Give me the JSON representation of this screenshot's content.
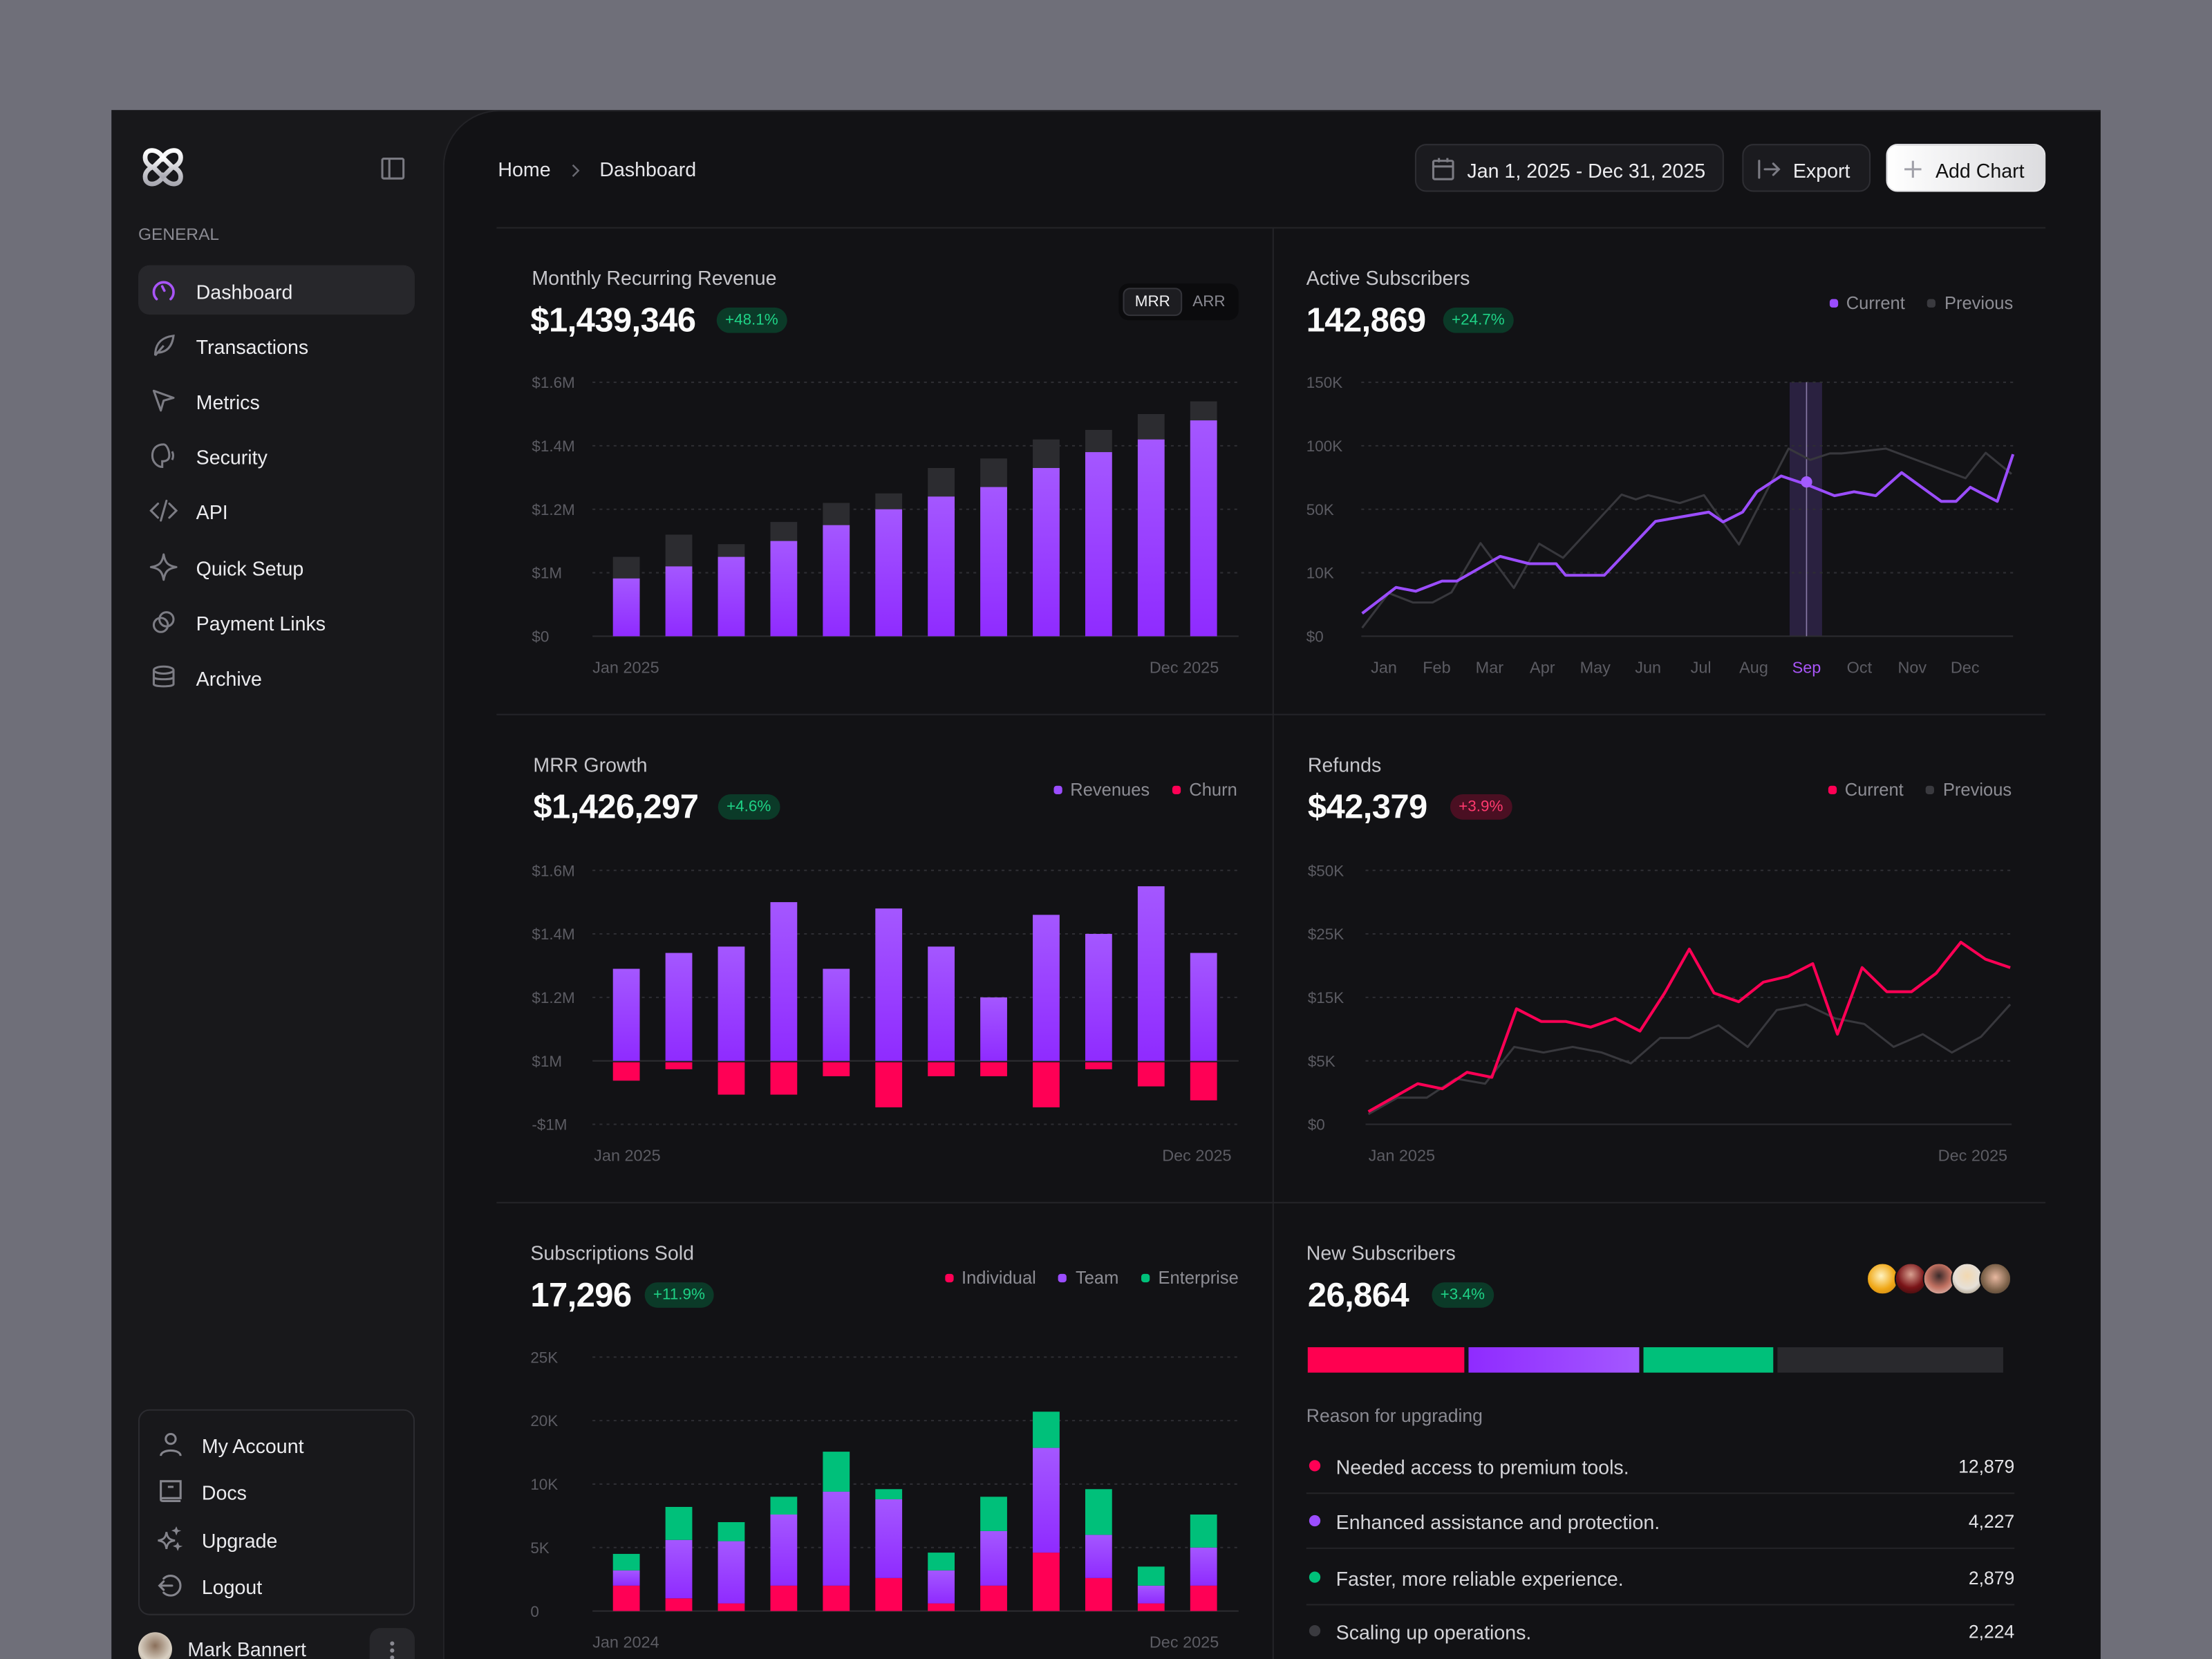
{
  "colors": {
    "accent": "#9b4dff",
    "red": "#ff0055",
    "green": "#00c07a",
    "grey": "#2a2a2e",
    "page_bg": "#121215",
    "sidebar_bg": "#18181b"
  },
  "sidebar": {
    "logo": "logo-icon",
    "section_label": "GENERAL",
    "items": [
      {
        "label": "Dashboard",
        "icon": "gauge-icon",
        "active": true
      },
      {
        "label": "Transactions",
        "icon": "leaf-icon"
      },
      {
        "label": "Metrics",
        "icon": "cursor-icon"
      },
      {
        "label": "Security",
        "icon": "shield-icon"
      },
      {
        "label": "API",
        "icon": "code-icon"
      },
      {
        "label": "Quick Setup",
        "icon": "sparkle-icon"
      },
      {
        "label": "Payment Links",
        "icon": "link-icon"
      },
      {
        "label": "Archive",
        "icon": "database-icon"
      }
    ],
    "bottom_items": [
      {
        "label": "My Account",
        "icon": "user-icon"
      },
      {
        "label": "Docs",
        "icon": "book-icon"
      },
      {
        "label": "Upgrade",
        "icon": "sparkles-icon"
      },
      {
        "label": "Logout",
        "icon": "logout-icon"
      }
    ],
    "user": {
      "name": "Mark Bannert"
    }
  },
  "header": {
    "breadcrumb": [
      "Home",
      "Dashboard"
    ],
    "date_range": "Jan 1, 2025 - Dec 31, 2025",
    "export_label": "Export",
    "add_chart_label": "Add Chart"
  },
  "chart_data": [
    {
      "type": "bar",
      "title": "Monthly Recurring Revenue",
      "value": "$1,439,346",
      "change": "+48.1%",
      "change_dir": "up",
      "toggle": {
        "options": [
          "MRR",
          "ARR"
        ],
        "selected": "MRR"
      },
      "yticks": [
        "$0",
        "$1M",
        "$1.2M",
        "$1.4M",
        "$1.6M"
      ],
      "ytick_values": [
        0,
        1,
        1.2,
        1.4,
        1.6
      ],
      "unit": "$M",
      "xlabels": [
        "Jan 2025",
        "Dec 2025"
      ],
      "series": [
        {
          "values": [
            0.91,
            1.02,
            1.05,
            1.1,
            1.15,
            1.2,
            1.24,
            1.27,
            1.33,
            1.38,
            1.42,
            1.48
          ],
          "color": "#9b4dff"
        },
        {
          "values": [
            1.05,
            1.12,
            1.09,
            1.16,
            1.22,
            1.25,
            1.33,
            1.36,
            1.42,
            1.45,
            1.5,
            1.54
          ],
          "color": "#2c2c30"
        }
      ]
    },
    {
      "type": "line",
      "title": "Active Subscribers",
      "value": "142,869",
      "change": "+24.7%",
      "change_dir": "up",
      "legend": [
        "Current",
        "Previous"
      ],
      "yticks": [
        "$0",
        "10K",
        "50K",
        "100K",
        "150K"
      ],
      "ytick_values": [
        0,
        10,
        50,
        100,
        150
      ],
      "unit": "K",
      "months": [
        "Jan",
        "Feb",
        "Mar",
        "Apr",
        "May",
        "Jun",
        "Jul",
        "Aug",
        "Sep",
        "Oct",
        "Nov",
        "Dec"
      ],
      "highlight_month": "Sep",
      "series": [
        {
          "name": "Current",
          "color": "#9b4dff",
          "points": [
            [
              0.59,
              3.6
            ],
            [
              1.23,
              7.7
            ],
            [
              1.6,
              7.1
            ],
            [
              2.1,
              8.7
            ],
            [
              2.38,
              8.7
            ],
            [
              3.2,
              20.3
            ],
            [
              3.75,
              15.7
            ],
            [
              4.26,
              15.7
            ],
            [
              4.44,
              9.6
            ],
            [
              5.17,
              9.6
            ],
            [
              6.14,
              42.4
            ],
            [
              7.15,
              48.2
            ],
            [
              7.42,
              42
            ],
            [
              7.79,
              48.2
            ],
            [
              8.06,
              63.8
            ],
            [
              8.52,
              76.2
            ],
            [
              9.01,
              69.3
            ],
            [
              9.53,
              60.7
            ],
            [
              9.9,
              63.8
            ],
            [
              10.31,
              60.7
            ],
            [
              10.8,
              78.9
            ],
            [
              11.55,
              56.2
            ],
            [
              11.83,
              56.2
            ],
            [
              12.1,
              67.3
            ],
            [
              12.61,
              56.2
            ],
            [
              12.91,
              93.3
            ]
          ]
        },
        {
          "name": "Previous",
          "color": "#38383d",
          "points": [
            [
              0.59,
              1.3
            ],
            [
              1.09,
              6.8
            ],
            [
              1.55,
              5.3
            ],
            [
              1.92,
              5.3
            ],
            [
              2.28,
              6.9
            ],
            [
              2.83,
              28.7
            ],
            [
              3.46,
              7.6
            ],
            [
              3.94,
              28.3
            ],
            [
              4.39,
              19.4
            ],
            [
              5.5,
              61.6
            ],
            [
              5.77,
              57.8
            ],
            [
              6.0,
              61.1
            ],
            [
              6.6,
              54.9
            ],
            [
              7.06,
              61.1
            ],
            [
              7.72,
              27.8
            ],
            [
              8.66,
              97.8
            ],
            [
              9.07,
              88.9
            ],
            [
              9.44,
              94
            ],
            [
              9.67,
              94
            ],
            [
              10.5,
              97.8
            ],
            [
              12.01,
              74.4
            ],
            [
              12.39,
              94.4
            ],
            [
              12.88,
              77.8
            ]
          ]
        }
      ]
    },
    {
      "type": "bar",
      "title": "MRR Growth",
      "value": "$1,426,297",
      "change": "+4.6%",
      "change_dir": "up",
      "legend": [
        "Revenues",
        "Churn"
      ],
      "yticks": [
        "-$1M",
        "$1M",
        "$1.2M",
        "$1.4M",
        "$1.6M"
      ],
      "ytick_values": [
        -1,
        1,
        1.2,
        1.4,
        1.6
      ],
      "unit": "$M",
      "xlabels": [
        "Jan 2025",
        "Dec 2025"
      ],
      "series": [
        {
          "name": "Revenues",
          "color": "#9b4dff",
          "values": [
            1.29,
            1.34,
            1.36,
            1.5,
            1.29,
            1.48,
            1.36,
            1.2,
            1.46,
            1.4,
            1.55,
            1.34
          ]
        },
        {
          "name": "Churn",
          "color": "#ff0055",
          "values": [
            -0.29,
            -0.11,
            -0.51,
            -0.51,
            -0.22,
            -0.71,
            -0.22,
            -0.22,
            -0.71,
            -0.11,
            -0.38,
            -0.6
          ]
        }
      ]
    },
    {
      "type": "line",
      "title": "Refunds",
      "value": "$42,379",
      "change": "+3.9%",
      "change_dir": "down",
      "legend": [
        "Current",
        "Previous"
      ],
      "yticks": [
        "$0",
        "$5K",
        "$15K",
        "$25K",
        "$50K"
      ],
      "ytick_values": [
        0,
        5,
        15,
        25,
        50
      ],
      "unit": "$K",
      "xlabels": [
        "Jan 2025",
        "Dec 2025"
      ],
      "series": [
        {
          "name": "Current",
          "color": "#ff0055",
          "values": [
            1.0,
            2.1,
            3.2,
            2.8,
            4.1,
            3.7,
            13.2,
            11.2,
            11.2,
            10.3,
            11.7,
            9.7,
            15.7,
            22.6,
            15.7,
            14.3,
            17.4,
            18.3,
            20.3,
            9.2,
            19.7,
            15.9,
            15.9,
            18.8,
            23.7,
            21.0,
            19.7
          ]
        },
        {
          "name": "Previous",
          "color": "#38383d",
          "values": [
            0.8,
            2.1,
            2.1,
            3.6,
            3.2,
            7.2,
            6.3,
            7.2,
            6.3,
            4.8,
            8.6,
            8.6,
            10.6,
            7.2,
            13.0,
            13.9,
            11.7,
            10.8,
            7.2,
            9.2,
            6.3,
            8.8,
            13.9
          ]
        }
      ]
    },
    {
      "type": "bar",
      "stacked": true,
      "title": "Subscriptions Sold",
      "value": "17,296",
      "change": "+11.9%",
      "change_dir": "up",
      "legend": [
        "Individual",
        "Team",
        "Enterprise"
      ],
      "yticks": [
        "0",
        "5K",
        "10K",
        "20K",
        "25K"
      ],
      "ytick_values": [
        0,
        5,
        10,
        20,
        25
      ],
      "unit": "K",
      "xlabels": [
        "Jan 2024",
        "Dec 2025"
      ],
      "series": [
        {
          "name": "Individual",
          "color": "#ff0055",
          "values": [
            2.0,
            1.0,
            0.6,
            2.0,
            2.0,
            2.6,
            0.6,
            2.0,
            4.6,
            2.6,
            0.6,
            2.0
          ]
        },
        {
          "name": "Team",
          "color": "#9b4dff",
          "values": [
            1.2,
            4.6,
            4.9,
            5.6,
            7.4,
            6.2,
            2.6,
            4.3,
            11.1,
            3.4,
            1.4,
            3.0
          ]
        },
        {
          "name": "Enterprise",
          "color": "#00c07a",
          "values": [
            1.3,
            2.6,
            1.5,
            1.4,
            5.7,
            0.8,
            1.4,
            2.7,
            5.0,
            3.6,
            1.5,
            2.6
          ]
        }
      ]
    }
  ],
  "new_subscribers": {
    "title": "New Subscribers",
    "value": "26,864",
    "change": "+3.4%",
    "change_dir": "up",
    "avatars": 5,
    "segment_shares_percent": [
      22.6,
      24.6,
      18.6,
      32.4
    ],
    "reason_label": "Reason for upgrading",
    "reasons": [
      {
        "label": "Needed access to premium tools.",
        "value": "12,879",
        "color": "#ff0055"
      },
      {
        "label": "Enhanced assistance and protection.",
        "value": "4,227",
        "color": "#9b4dff"
      },
      {
        "label": "Faster, more reliable experience.",
        "value": "2,879",
        "color": "#00c07a"
      },
      {
        "label": "Scaling up operations.",
        "value": "2,224",
        "color": "#3a3a3f"
      }
    ]
  }
}
